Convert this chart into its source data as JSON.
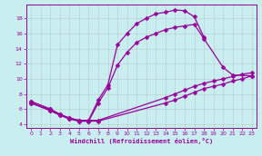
{
  "xlabel": "Windchill (Refroidissement éolien,°C)",
  "bg_color": "#c8eef0",
  "line_color": "#990099",
  "grid_color": "#b0b0b0",
  "xlim": [
    -0.5,
    23.5
  ],
  "ylim": [
    3.5,
    19.8
  ],
  "xticks": [
    0,
    1,
    2,
    3,
    4,
    5,
    6,
    7,
    8,
    9,
    10,
    11,
    12,
    13,
    14,
    15,
    16,
    17,
    18,
    19,
    20,
    21,
    22,
    23
  ],
  "yticks": [
    4,
    6,
    8,
    10,
    12,
    14,
    16,
    18
  ],
  "curves": [
    {
      "x": [
        0,
        2,
        3,
        4,
        5,
        6,
        7,
        8,
        9,
        10,
        11,
        12,
        13,
        14,
        15,
        16,
        17,
        18
      ],
      "y": [
        7.0,
        6.0,
        5.3,
        4.8,
        4.5,
        4.5,
        7.2,
        9.2,
        14.5,
        16.0,
        17.3,
        18.0,
        18.6,
        18.8,
        19.1,
        19.0,
        18.2,
        15.5
      ]
    },
    {
      "x": [
        0,
        2,
        3,
        4,
        5,
        6,
        7,
        8,
        9,
        10,
        11,
        12,
        13,
        14,
        15,
        16,
        17,
        18,
        20,
        21,
        23
      ],
      "y": [
        6.8,
        5.8,
        5.2,
        4.7,
        4.4,
        4.4,
        6.8,
        8.8,
        11.8,
        13.5,
        14.8,
        15.5,
        16.0,
        16.5,
        16.8,
        17.0,
        17.2,
        15.3,
        11.5,
        10.5,
        10.4
      ]
    },
    {
      "x": [
        0,
        2,
        3,
        4,
        5,
        6,
        7,
        14,
        15,
        16,
        17,
        18,
        19,
        20,
        21,
        22,
        23
      ],
      "y": [
        6.8,
        5.8,
        5.2,
        4.7,
        4.4,
        4.4,
        4.4,
        6.8,
        7.2,
        7.7,
        8.2,
        8.7,
        9.0,
        9.3,
        9.7,
        10.0,
        10.4
      ]
    },
    {
      "x": [
        0,
        2,
        3,
        4,
        5,
        6,
        7,
        14,
        15,
        16,
        17,
        18,
        19,
        20,
        21,
        22,
        23
      ],
      "y": [
        7.0,
        6.0,
        5.3,
        4.8,
        4.5,
        4.5,
        4.5,
        7.5,
        8.0,
        8.5,
        9.0,
        9.4,
        9.7,
        10.0,
        10.3,
        10.6,
        10.8
      ]
    }
  ],
  "markersize": 2.5,
  "linewidth": 0.9
}
